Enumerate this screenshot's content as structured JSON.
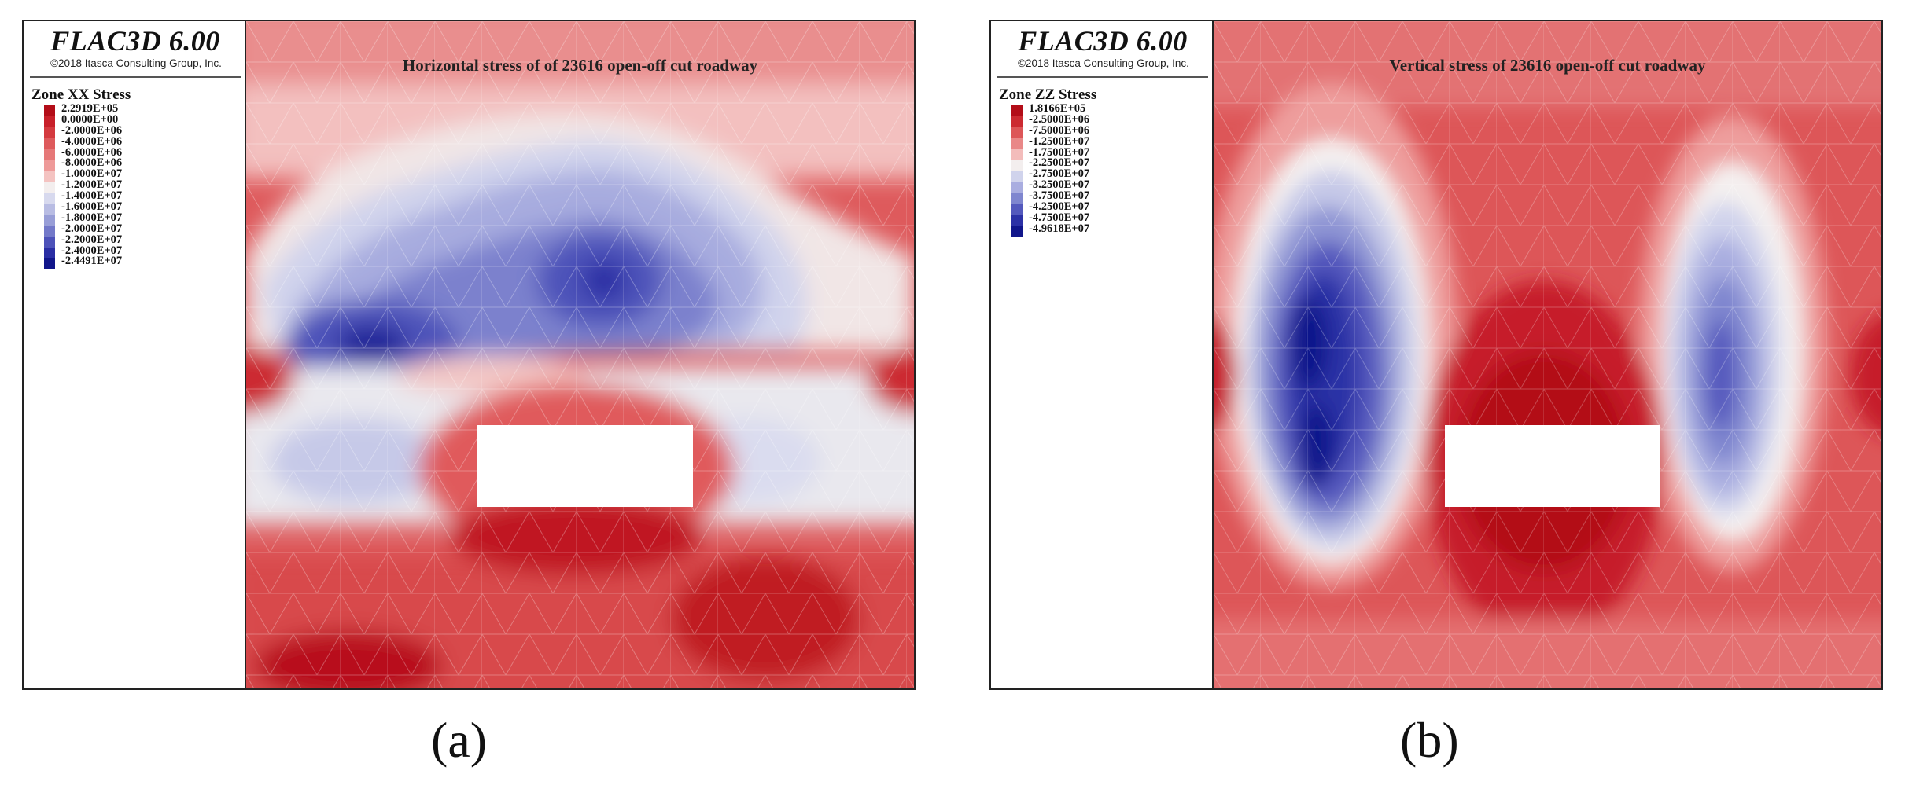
{
  "panels": [
    {
      "brand": "FLAC3D 6.00",
      "copyright": "©2018 Itasca Consulting Group, Inc.",
      "legend_title": "Zone XX Stress",
      "legend_labels": [
        "2.2919E+05",
        "0.0000E+00",
        "-2.0000E+06",
        "-4.0000E+06",
        "-6.0000E+06",
        "-8.0000E+06",
        "-1.0000E+07",
        "-1.2000E+07",
        "-1.4000E+07",
        "-1.6000E+07",
        "-1.8000E+07",
        "-2.0000E+07",
        "-2.2000E+07",
        "-2.4000E+07",
        "-2.4491E+07"
      ],
      "legend_colors": [
        "#b30d18",
        "#c8202a",
        "#d43a3f",
        "#de5a5c",
        "#e67878",
        "#ee9a99",
        "#f4c3c1",
        "#f3eeee",
        "#d7d9ee",
        "#b8bce3",
        "#989ed7",
        "#7379c9",
        "#4d52b9",
        "#2a2ea4",
        "#11168b"
      ],
      "map_title": "Horizontal stress of of 23616 open-off cut roadway",
      "caption": "(a)"
    },
    {
      "brand": "FLAC3D 6.00",
      "copyright": "©2018 Itasca Consulting Group, Inc.",
      "legend_title": "Zone ZZ Stress",
      "legend_labels": [
        "1.8166E+05",
        "-2.5000E+06",
        "-7.5000E+06",
        "-1.2500E+07",
        "-1.7500E+07",
        "-2.2500E+07",
        "-2.7500E+07",
        "-3.2500E+07",
        "-3.7500E+07",
        "-4.2500E+07",
        "-4.7500E+07",
        "-4.9618E+07"
      ],
      "legend_colors": [
        "#b30d18",
        "#cc2a31",
        "#dd5658",
        "#e98888",
        "#f3bcbb",
        "#f3eeee",
        "#d0d3ec",
        "#a9ade0",
        "#7f86cf",
        "#5459bd",
        "#2c31a6",
        "#11168b"
      ],
      "map_title": "Vertical stress of 23616 open-off cut roadway",
      "caption": "(b)"
    }
  ]
}
